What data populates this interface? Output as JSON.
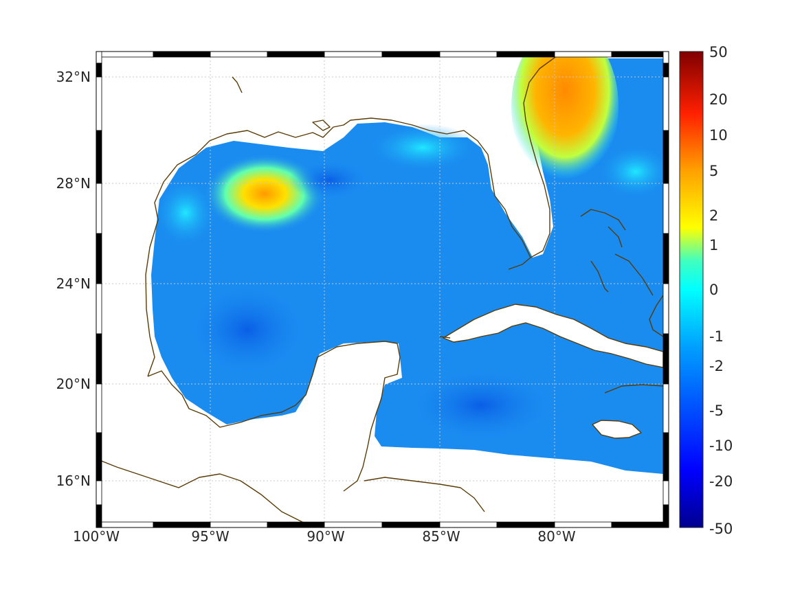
{
  "map": {
    "lon_ticks": [
      "100°W",
      "95°W",
      "90°W",
      "85°W",
      "80°W"
    ],
    "lat_ticks": [
      "32°N",
      "28°N",
      "24°N",
      "20°N",
      "16°N"
    ]
  },
  "colorbar": {
    "labels": [
      "50",
      "20",
      "10",
      "5",
      "2",
      "1",
      "0",
      "-1",
      "-2",
      "-5",
      "-10",
      "-20",
      "-50"
    ],
    "colors": [
      "#7f0000",
      "#ff0000",
      "#ff8000",
      "#ffff00",
      "#80ff80",
      "#00ffff",
      "#0080ff",
      "#0000ff",
      "#00008f"
    ]
  },
  "field": {
    "background_color": "#1a8cf0",
    "hotspots": [
      {
        "name": "western-gulf-eddy",
        "color": "#ffb000"
      },
      {
        "name": "atlantic-warm-area",
        "color": "#ff9a10"
      }
    ]
  },
  "coastline_color": "#5a3a05"
}
